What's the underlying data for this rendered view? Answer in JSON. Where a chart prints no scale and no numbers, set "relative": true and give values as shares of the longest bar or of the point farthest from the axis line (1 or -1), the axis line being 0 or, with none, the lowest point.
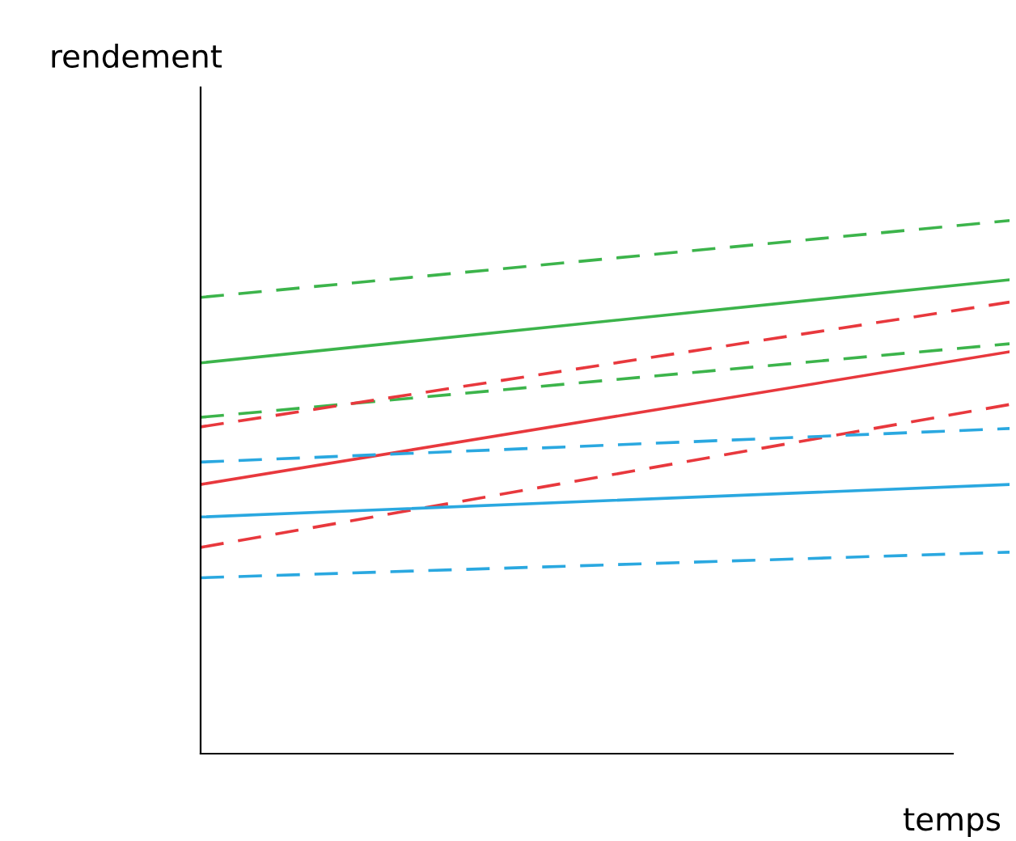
{
  "chart_data": {
    "type": "line",
    "relative": true,
    "xlabel": "temps",
    "ylabel": "rendement",
    "categories": [
      null,
      null
    ],
    "grid": false,
    "marker": "none",
    "series": [
      {
        "color": "#3cb44b",
        "line_style": "dashed",
        "values": [
          0.856,
          1.0
        ]
      },
      {
        "color": "#3cb44b",
        "line_style": "solid",
        "values": [
          0.733,
          0.889
        ]
      },
      {
        "color": "#3cb44b",
        "line_style": "dashed",
        "values": [
          0.631,
          0.769
        ]
      },
      {
        "color": "#e8383d",
        "line_style": "dashed",
        "values": [
          0.613,
          0.847
        ]
      },
      {
        "color": "#e8383d",
        "line_style": "solid",
        "values": [
          0.505,
          0.754
        ]
      },
      {
        "color": "#e8383d",
        "line_style": "dashed",
        "values": [
          0.387,
          0.655
        ]
      },
      {
        "color": "#2aa8e0",
        "line_style": "dashed",
        "values": [
          0.547,
          0.61
        ]
      },
      {
        "color": "#2aa8e0",
        "line_style": "solid",
        "values": [
          0.444,
          0.505
        ]
      },
      {
        "color": "#2aa8e0",
        "line_style": "dashed",
        "values": [
          0.33,
          0.378
        ]
      }
    ]
  }
}
